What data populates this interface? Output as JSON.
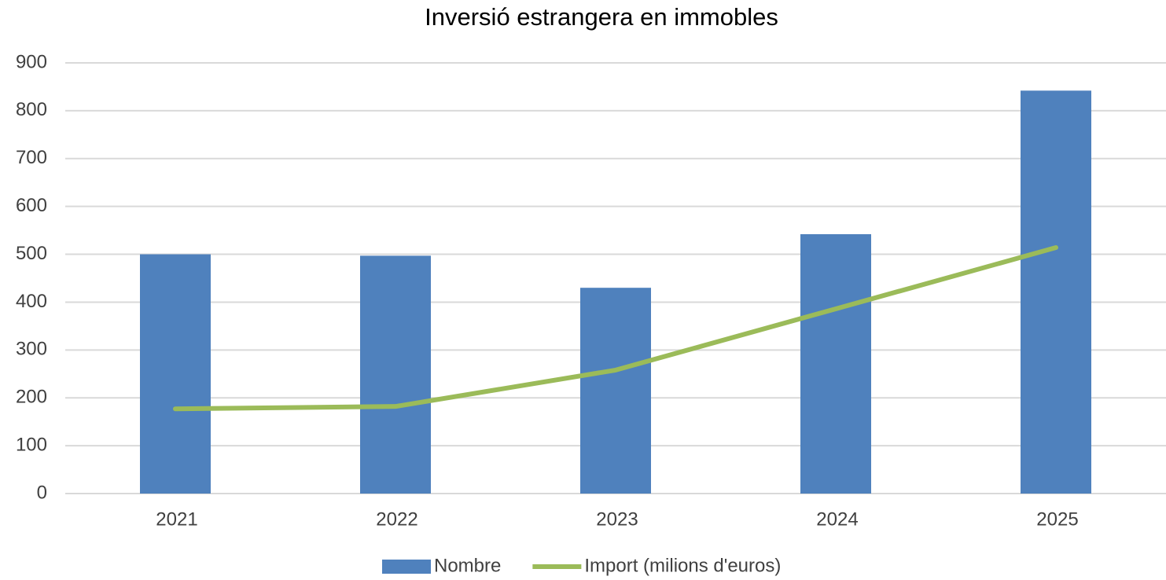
{
  "chart_data": {
    "type": "bar",
    "title": "Inversió estrangera en immobles",
    "categories": [
      "2021",
      "2022",
      "2023",
      "2024",
      "2025"
    ],
    "series": [
      {
        "name": "Nombre",
        "type": "bar",
        "color": "#4f81bd",
        "values": [
          500,
          497,
          430,
          542,
          842
        ]
      },
      {
        "name": "Import (milions d'euros)",
        "type": "line",
        "color": "#9bbb59",
        "values": [
          177,
          182,
          258,
          386,
          514
        ]
      }
    ],
    "ylim": [
      0,
      900
    ],
    "yticks": [
      0,
      100,
      200,
      300,
      400,
      500,
      600,
      700,
      800,
      900
    ],
    "grid": true,
    "legend": "bottom"
  }
}
